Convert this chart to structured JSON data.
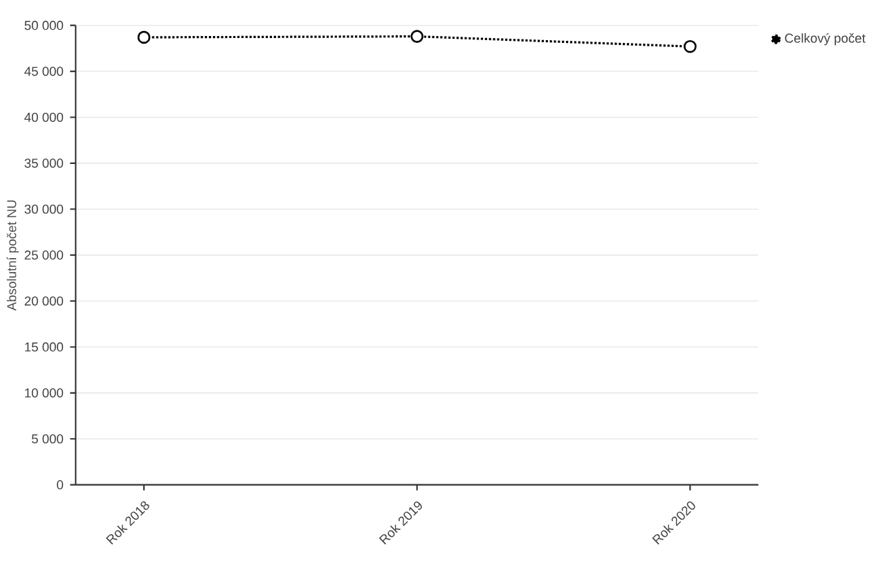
{
  "chart_data": {
    "type": "line",
    "ylabel": "Absolutní počet NU",
    "categories": [
      "Rok 2018",
      "Rok 2019",
      "Rok 2020"
    ],
    "series": [
      {
        "name": "Celkový počet",
        "color": "#000000",
        "values": [
          48700,
          48800,
          47700
        ]
      }
    ],
    "ylim": [
      0,
      50000
    ],
    "yticks": [
      {
        "value": 0,
        "label": "0"
      },
      {
        "value": 5000,
        "label": "5 000"
      },
      {
        "value": 10000,
        "label": "10 000"
      },
      {
        "value": 15000,
        "label": "15 000"
      },
      {
        "value": 20000,
        "label": "20 000"
      },
      {
        "value": 25000,
        "label": "25 000"
      },
      {
        "value": 30000,
        "label": "30 000"
      },
      {
        "value": 35000,
        "label": "35 000"
      },
      {
        "value": 40000,
        "label": "40 000"
      },
      {
        "value": 45000,
        "label": "45 000"
      },
      {
        "value": 50000,
        "label": "50 000"
      }
    ],
    "grid": "y",
    "legend": "top right",
    "marker": "circle",
    "line_style": "dotted"
  }
}
